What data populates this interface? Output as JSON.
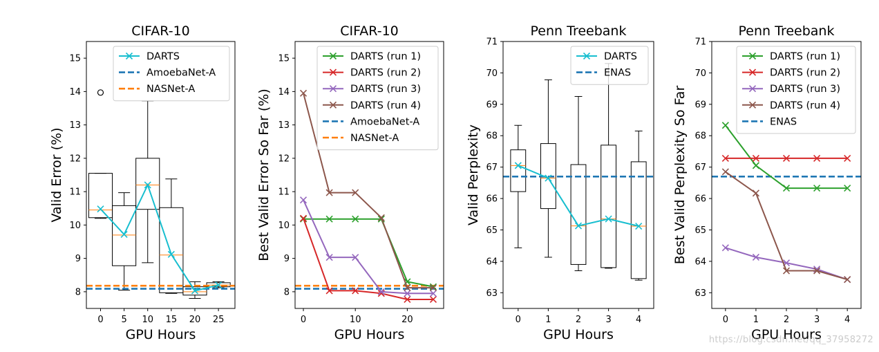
{
  "watermark": "https://blog.csdn.net/qq_37958272",
  "chart_data": [
    {
      "type": "box",
      "title": "CIFAR-10",
      "xlabel": "GPU Hours",
      "ylabel": "Valid Error (%)",
      "xlim": [
        -3,
        28.5
      ],
      "ylim": [
        7.5,
        15.5
      ],
      "xticks": [
        0,
        5,
        10,
        15,
        20,
        25
      ],
      "yticks": [
        8,
        9,
        10,
        11,
        12,
        13,
        14,
        15
      ],
      "boxes": [
        {
          "x": 0,
          "whislo": 10.2,
          "q1": 10.22,
          "med": 10.45,
          "q3": 11.55,
          "whishi": 11.55,
          "fliers": [
            13.97
          ]
        },
        {
          "x": 5,
          "whislo": 8.05,
          "q1": 8.78,
          "med": 9.7,
          "q3": 10.58,
          "whishi": 10.97,
          "fliers": []
        },
        {
          "x": 10,
          "whislo": 8.87,
          "q1": 10.47,
          "med": 11.2,
          "q3": 12.0,
          "whishi": 13.72,
          "fliers": []
        },
        {
          "x": 15,
          "whislo": 7.95,
          "q1": 7.97,
          "med": 9.1,
          "q3": 10.52,
          "whishi": 11.38,
          "fliers": []
        },
        {
          "x": 20,
          "whislo": 7.8,
          "q1": 7.9,
          "med": 8.0,
          "q3": 8.15,
          "whishi": 8.3,
          "fliers": []
        },
        {
          "x": 25,
          "whislo": 8.12,
          "q1": 8.15,
          "med": 8.2,
          "q3": 8.27,
          "whishi": 8.3,
          "fliers": []
        }
      ],
      "series": [
        {
          "name": "DARTS",
          "kind": "line",
          "color": "#17becf",
          "marker": "x",
          "x": [
            0,
            5,
            10,
            15,
            20,
            25
          ],
          "y": [
            10.48,
            9.72,
            11.2,
            9.12,
            8.03,
            8.2
          ]
        },
        {
          "name": "AmoebaNet-A",
          "kind": "hline",
          "color": "#1f77b4",
          "y": 8.09
        },
        {
          "name": "NASNet-A",
          "kind": "hline",
          "color": "#ff7f0e",
          "y": 8.18
        }
      ],
      "legend": "top-right"
    },
    {
      "type": "line",
      "title": "CIFAR-10",
      "xlabel": "GPU Hours",
      "ylabel": "Best Valid Error So Far (%)",
      "xlim": [
        -1.6,
        27.0
      ],
      "ylim": [
        7.5,
        15.5
      ],
      "xticks": [
        0,
        10,
        20
      ],
      "yticks": [
        8,
        9,
        10,
        11,
        12,
        13,
        14,
        15
      ],
      "series": [
        {
          "name": "DARTS (run 1)",
          "kind": "line",
          "color": "#2ca02c",
          "marker": "x",
          "x": [
            0,
            5,
            10,
            15,
            20,
            25
          ],
          "y": [
            10.18,
            10.18,
            10.18,
            10.18,
            8.3,
            8.15
          ]
        },
        {
          "name": "DARTS (run 2)",
          "kind": "line",
          "color": "#d62728",
          "marker": "x",
          "x": [
            0,
            5,
            10,
            15,
            20,
            25
          ],
          "y": [
            10.2,
            8.03,
            8.03,
            7.95,
            7.77,
            7.77
          ]
        },
        {
          "name": "DARTS (run 3)",
          "kind": "line",
          "color": "#9467bd",
          "marker": "x",
          "x": [
            0,
            5,
            10,
            15,
            20,
            25
          ],
          "y": [
            10.75,
            9.03,
            9.03,
            8.0,
            7.95,
            7.95
          ]
        },
        {
          "name": "DARTS (run 4)",
          "kind": "line",
          "color": "#8c564b",
          "marker": "x",
          "x": [
            0,
            5,
            10,
            15,
            20,
            25
          ],
          "y": [
            13.95,
            10.97,
            10.97,
            10.22,
            8.12,
            8.12
          ]
        },
        {
          "name": "AmoebaNet-A",
          "kind": "hline",
          "color": "#1f77b4",
          "y": 8.09
        },
        {
          "name": "NASNet-A",
          "kind": "hline",
          "color": "#ff7f0e",
          "y": 8.18
        }
      ],
      "legend": "top-right"
    },
    {
      "type": "box",
      "title": "Penn Treebank",
      "xlabel": "GPU Hours",
      "ylabel": "Valid Perplexity",
      "xlim": [
        -0.5,
        4.5
      ],
      "ylim": [
        62.5,
        71.0
      ],
      "xticks": [
        0,
        1,
        2,
        3,
        4
      ],
      "yticks": [
        63,
        64,
        65,
        66,
        67,
        68,
        69,
        70,
        71
      ],
      "boxes": [
        {
          "x": 0,
          "whislo": 64.43,
          "q1": 66.22,
          "med": 67.05,
          "q3": 67.55,
          "whishi": 68.33,
          "fliers": []
        },
        {
          "x": 1,
          "whislo": 64.13,
          "q1": 65.68,
          "med": 66.65,
          "q3": 67.75,
          "whishi": 69.78,
          "fliers": []
        },
        {
          "x": 2,
          "whislo": 63.7,
          "q1": 63.9,
          "med": 65.13,
          "q3": 67.08,
          "whishi": 69.25,
          "fliers": []
        },
        {
          "x": 3,
          "whislo": 63.78,
          "q1": 63.8,
          "med": 65.35,
          "q3": 67.7,
          "whishi": 70.3,
          "fliers": []
        },
        {
          "x": 4,
          "whislo": 63.4,
          "q1": 63.45,
          "med": 65.12,
          "q3": 67.17,
          "whishi": 68.15,
          "fliers": []
        }
      ],
      "series": [
        {
          "name": "DARTS",
          "kind": "line",
          "color": "#17becf",
          "marker": "x",
          "x": [
            0,
            1,
            2,
            3,
            4
          ],
          "y": [
            67.05,
            66.65,
            65.13,
            65.35,
            65.12
          ]
        },
        {
          "name": "ENAS",
          "kind": "hline",
          "color": "#1f77b4",
          "y": 66.7
        }
      ],
      "legend": "top-right"
    },
    {
      "type": "line",
      "title": "Penn Treebank",
      "xlabel": "GPU Hours",
      "ylabel": "Best Valid Perplexity So Far",
      "xlim": [
        -0.45,
        4.45
      ],
      "ylim": [
        62.5,
        71.0
      ],
      "xticks": [
        0,
        1,
        2,
        3,
        4
      ],
      "yticks": [
        63,
        64,
        65,
        66,
        67,
        68,
        69,
        70,
        71
      ],
      "series": [
        {
          "name": "DARTS (run 1)",
          "kind": "line",
          "color": "#2ca02c",
          "marker": "x",
          "x": [
            0,
            1,
            2,
            3,
            4
          ],
          "y": [
            68.33,
            67.05,
            66.33,
            66.33,
            66.33
          ]
        },
        {
          "name": "DARTS (run 2)",
          "kind": "line",
          "color": "#d62728",
          "marker": "x",
          "x": [
            0,
            1,
            2,
            3,
            4
          ],
          "y": [
            67.28,
            67.28,
            67.28,
            67.28,
            67.28
          ]
        },
        {
          "name": "DARTS (run 3)",
          "kind": "line",
          "color": "#9467bd",
          "marker": "x",
          "x": [
            0,
            1,
            2,
            3,
            4
          ],
          "y": [
            64.43,
            64.13,
            63.95,
            63.75,
            63.42
          ]
        },
        {
          "name": "DARTS (run 4)",
          "kind": "line",
          "color": "#8c564b",
          "marker": "x",
          "x": [
            0,
            1,
            2,
            3,
            4
          ],
          "y": [
            66.85,
            66.17,
            63.7,
            63.7,
            63.42
          ]
        },
        {
          "name": "ENAS",
          "kind": "hline",
          "color": "#1f77b4",
          "y": 66.7
        }
      ],
      "legend": "top-right"
    }
  ]
}
